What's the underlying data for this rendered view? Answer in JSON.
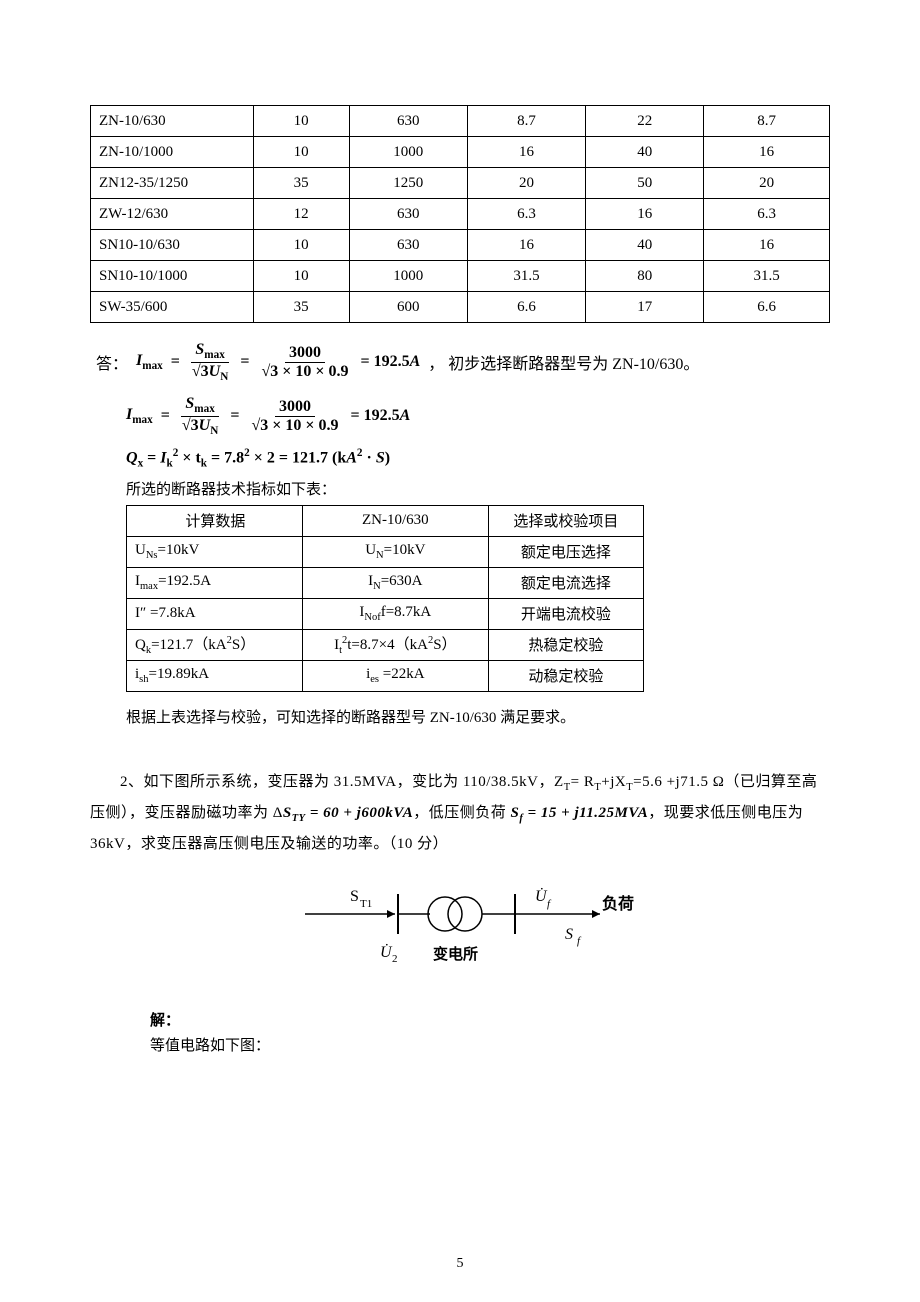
{
  "table1": {
    "rows": [
      [
        "ZN-10/630",
        "10",
        "630",
        "8.7",
        "22",
        "8.7"
      ],
      [
        "ZN-10/1000",
        "10",
        "1000",
        "16",
        "40",
        "16"
      ],
      [
        "ZN12-35/1250",
        "35",
        "1250",
        "20",
        "50",
        "20"
      ],
      [
        "ZW-12/630",
        "12",
        "630",
        "6.3",
        "16",
        "6.3"
      ],
      [
        "SN10-10/630",
        "10",
        "630",
        "16",
        "40",
        "16"
      ],
      [
        "SN10-10/1000",
        "10",
        "1000",
        "31.5",
        "80",
        "31.5"
      ],
      [
        "SW-35/600",
        "35",
        "600",
        "6.6",
        "17",
        "6.6"
      ]
    ],
    "col_widths": [
      "22%",
      "13%",
      "16%",
      "16%",
      "16%",
      "17%"
    ]
  },
  "formula1": {
    "prefix": "答：",
    "lhs": "I",
    "lhs_sub": "max",
    "eq": " = ",
    "frac1_num": "S",
    "frac1_num_sub": "max",
    "frac1_den_pre": "√3",
    "frac1_den_var": "U",
    "frac1_den_sub": "N",
    "eq2": " = ",
    "frac2_num": "3000",
    "frac2_den": "√3 × 10 × 0.9",
    "eq3": " = 192.5",
    "unit": "A",
    "tail": "，  初步选择断路器型号为 ZN-10/630。"
  },
  "formula2": {
    "same_as": "I_max repeated"
  },
  "formula3": {
    "text_html": "Q<sub>x</sub> = I<sub>k</sub><sup>2</sup> × t<sub>k</sub> = 7.8<sup>2</sup> × 2 = 121.7 (kA<sup>2</sup> · S)"
  },
  "tech_label": "所选的断路器技术指标如下表：",
  "table2": {
    "header": [
      "计算数据",
      "ZN-10/630",
      "选择或校验项目"
    ],
    "rows_html": [
      [
        "U<sub>Ns</sub>=10kV",
        "U<sub>N</sub>=10kV",
        "额定电压选择"
      ],
      [
        "I<sub>max</sub>=192.5A",
        "I<sub>N</sub>=630A",
        "额定电流选择"
      ],
      [
        "I″ =7.8kA",
        "I<sub>Nof</sub>f=8.7kA",
        "开端电流校验"
      ],
      [
        "Q<sub>k</sub>=121.7（kA<sup>2</sup>S）",
        "I<sub>t</sub><sup>2</sup>t=8.7×4（kA<sup>2</sup>S）",
        "热稳定校验"
      ],
      [
        "i<sub>sh</sub>=19.89kA",
        "i<sub>es</sub> =22kA",
        "动稳定校验"
      ]
    ]
  },
  "conclude": "根据上表选择与校验，可知选择的断路器型号 ZN-10/630 满足要求。",
  "problem2": {
    "text_html": "2、如下图所示系统，变压器为 31.5MVA，变比为 110/38.5kV，Z<sub>T</sub>= R<sub>T</sub>+jX<sub>T</sub>=5.6 +j71.5 Ω（已归算至高压侧），变压器励磁功率为 Δ<span class='bold'>S<sub>TY</sub></span> <span class='bold'>= 60 + j600kVA</span>，低压侧负荷 <span class='bold'>S<sub>f</sub> = 15 + j11.25MVA</span>，现要求低压侧电压为 36kV，求变压器高压侧电压及输送的功率。（10 分）"
  },
  "diagram": {
    "s_t1": "S",
    "s_t1_sub": "T1",
    "u2": "U̇",
    "u2_sub": "2",
    "substation": "变电所",
    "uf": "U̇",
    "uf_sub": "f",
    "sf": "S",
    "sf_sub": "f",
    "load": "负荷"
  },
  "solve_label": "解：",
  "solve_text": "等值电路如下图：",
  "page_number": "5"
}
